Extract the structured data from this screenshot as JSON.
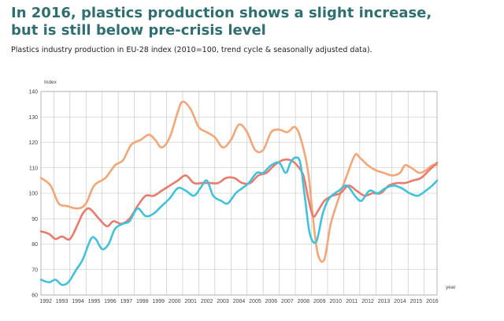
{
  "header": {
    "title_line1": "In 2016, plastics production shows a slight increase,",
    "title_line2": "but is still below pre-crisis level",
    "subtitle": "Plastics industry production in EU-28 index (2010=100, trend cycle & seasonally adjusted data)."
  },
  "chart_data": {
    "type": "line",
    "title": "",
    "xlabel": "year",
    "ylabel": "Index",
    "ylim": [
      60,
      140
    ],
    "xlim": [
      1991.7,
      2016.3
    ],
    "yticks": [
      60,
      70,
      80,
      90,
      100,
      110,
      120,
      130,
      140
    ],
    "categories": [
      "1992",
      "1993",
      "1994",
      "1995",
      "1996",
      "1997",
      "1998",
      "1999",
      "2000",
      "2001",
      "2002",
      "2003",
      "2004",
      "2005",
      "2006",
      "2007",
      "2008",
      "2009",
      "2010",
      "2011",
      "2012",
      "2013",
      "2014",
      "2015",
      "2016"
    ],
    "grid": true,
    "legend": "none",
    "series": [
      {
        "color": "#f4a677",
        "x": [
          1991.7,
          1992.3,
          1992.8,
          1993.3,
          1994.0,
          1994.5,
          1995.0,
          1995.7,
          1996.3,
          1996.8,
          1997.3,
          1997.9,
          1998.4,
          1998.8,
          1999.2,
          1999.7,
          2000.2,
          2000.5,
          2001.0,
          2001.5,
          2002.0,
          2002.5,
          2003.0,
          2003.5,
          2004.0,
          2004.5,
          2005.0,
          2005.5,
          2006.0,
          2006.5,
          2007.0,
          2007.5,
          2007.9,
          2008.3,
          2008.6,
          2008.9,
          2009.3,
          2009.7,
          2010.3,
          2010.7,
          2011.2,
          2011.5,
          2012.0,
          2012.5,
          2013.0,
          2013.5,
          2014.0,
          2014.3,
          2014.7,
          2015.2,
          2015.6,
          2016.0,
          2016.3
        ],
        "y": [
          106,
          103,
          96,
          95,
          94,
          96,
          103,
          106,
          111,
          113,
          119,
          121,
          123,
          121,
          118,
          122,
          132,
          136,
          133,
          126,
          124,
          122,
          118,
          121,
          127,
          124,
          117,
          117,
          124,
          125,
          124,
          126,
          120,
          108,
          90,
          76,
          74,
          88,
          100,
          107,
          115,
          114,
          111,
          109,
          108,
          107,
          108,
          111,
          110,
          108,
          109,
          111,
          111
        ]
      },
      {
        "color": "#ea7b6c",
        "x": [
          1991.7,
          1992.2,
          1992.6,
          1993.0,
          1993.5,
          1994.0,
          1994.3,
          1994.7,
          1995.3,
          1995.8,
          1996.2,
          1996.7,
          1997.2,
          1997.7,
          1998.2,
          1998.7,
          1999.2,
          1999.7,
          2000.2,
          2000.7,
          2001.2,
          2001.7,
          2002.2,
          2002.7,
          2003.2,
          2003.7,
          2004.2,
          2004.7,
          2005.2,
          2005.7,
          2006.2,
          2006.7,
          2007.2,
          2007.6,
          2008.0,
          2008.3,
          2008.6,
          2008.9,
          2009.3,
          2009.8,
          2010.3,
          2010.8,
          2011.3,
          2011.8,
          2012.3,
          2012.8,
          2013.3,
          2013.8,
          2014.3,
          2014.8,
          2015.3,
          2015.8,
          2016.3
        ],
        "y": [
          85,
          84,
          82,
          83,
          82,
          88,
          92,
          94,
          90,
          87,
          89,
          88,
          90,
          95,
          99,
          99,
          101,
          103,
          105,
          107,
          104,
          104,
          104,
          104,
          106,
          106,
          104,
          104,
          107,
          108,
          111,
          113,
          113,
          111,
          107,
          98,
          91,
          93,
          97,
          99,
          100,
          103,
          101,
          99,
          100,
          100,
          103,
          104,
          104,
          105,
          106,
          109,
          112
        ]
      },
      {
        "color": "#41c2dc",
        "x": [
          1991.7,
          1992.2,
          1992.6,
          1993.0,
          1993.4,
          1993.9,
          1994.3,
          1994.8,
          1995.1,
          1995.5,
          1995.9,
          1996.3,
          1996.8,
          1997.2,
          1997.7,
          1998.2,
          1998.7,
          1999.2,
          1999.7,
          2000.2,
          2000.7,
          2001.2,
          2001.6,
          2002.0,
          2002.4,
          2002.9,
          2003.3,
          2003.8,
          2004.2,
          2004.6,
          2005.1,
          2005.5,
          2006.0,
          2006.5,
          2006.9,
          2007.2,
          2007.5,
          2007.8,
          2008.1,
          2008.4,
          2008.8,
          2009.2,
          2009.6,
          2010.2,
          2010.7,
          2011.2,
          2011.6,
          2012.1,
          2012.6,
          2013.1,
          2013.6,
          2014.1,
          2014.6,
          2015.1,
          2015.6,
          2016.0,
          2016.3
        ],
        "y": [
          66,
          65,
          66,
          64,
          65,
          70,
          74,
          82,
          82,
          78,
          80,
          86,
          88,
          89,
          94,
          91,
          92,
          95,
          98,
          102,
          101,
          99,
          102,
          105,
          99,
          97,
          96,
          100,
          102,
          104,
          108,
          108,
          111,
          112,
          108,
          112,
          114,
          112,
          98,
          84,
          81,
          92,
          98,
          101,
          103,
          99,
          97,
          101,
          100,
          102,
          103,
          102,
          100,
          99,
          101,
          103,
          105
        ]
      }
    ]
  }
}
